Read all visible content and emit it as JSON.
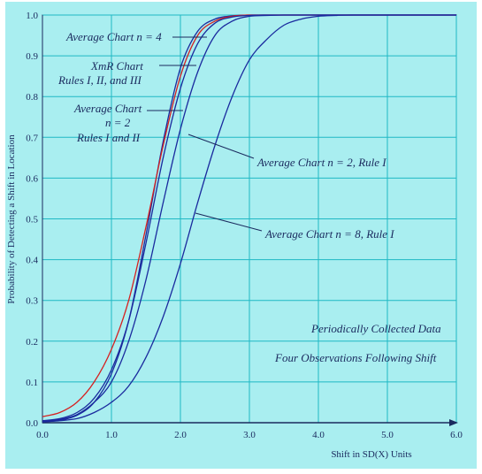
{
  "chart_data": {
    "type": "line",
    "ylabel": "Probability of Detecting a Shift in Location",
    "xlabel": "Shift in  SD(X) Units",
    "xlim": [
      0,
      6
    ],
    "ylim": [
      0,
      1
    ],
    "x_ticks": [
      "0.0",
      "1.0",
      "2.0",
      "3.0",
      "4.0",
      "5.0",
      "6.0"
    ],
    "y_ticks": [
      "0.0",
      "0.1",
      "0.2",
      "0.3",
      "0.4",
      "0.5",
      "0.6",
      "0.7",
      "0.8",
      "0.9",
      "1.0"
    ],
    "grid": true,
    "series": [
      {
        "name": "Average Chart n = 4",
        "color": "#1a2a9e",
        "x": [
          0,
          0.25,
          0.5,
          0.75,
          1.0,
          1.25,
          1.5,
          1.75,
          2.0,
          2.25,
          2.5,
          2.75,
          3.0,
          3.25,
          3.5,
          4.0,
          6.0
        ],
        "y": [
          0.002,
          0.006,
          0.018,
          0.05,
          0.12,
          0.25,
          0.46,
          0.69,
          0.87,
          0.96,
          0.99,
          0.998,
          1.0,
          1.0,
          1.0,
          1.0,
          1.0
        ]
      },
      {
        "name": "XmR Chart Rules I, II, and III",
        "color": "#d62020",
        "x": [
          0,
          0.25,
          0.5,
          0.75,
          1.0,
          1.25,
          1.5,
          1.75,
          2.0,
          2.25,
          2.5,
          2.75,
          3.0,
          3.25,
          3.5,
          4.0,
          6.0
        ],
        "y": [
          0.015,
          0.025,
          0.05,
          0.1,
          0.18,
          0.3,
          0.48,
          0.68,
          0.85,
          0.95,
          0.985,
          0.997,
          1.0,
          1.0,
          1.0,
          1.0,
          1.0
        ]
      },
      {
        "name": "Average Chart n = 2 Rules I and II",
        "color": "#1a2a9e",
        "x": [
          0,
          0.25,
          0.5,
          0.75,
          1.0,
          1.25,
          1.5,
          1.75,
          2.0,
          2.25,
          2.5,
          2.75,
          3.0,
          3.25,
          3.5,
          4.0,
          6.0
        ],
        "y": [
          0.005,
          0.01,
          0.025,
          0.06,
          0.13,
          0.25,
          0.44,
          0.65,
          0.82,
          0.93,
          0.98,
          0.995,
          0.999,
          1.0,
          1.0,
          1.0,
          1.0
        ]
      },
      {
        "name": "Average Chart n = 2, Rule I",
        "color": "#1a2a9e",
        "x": [
          0,
          0.25,
          0.5,
          0.75,
          1.0,
          1.25,
          1.5,
          1.75,
          2.0,
          2.25,
          2.5,
          2.75,
          3.0,
          3.25,
          3.5,
          4.0,
          6.0
        ],
        "y": [
          0.003,
          0.008,
          0.02,
          0.05,
          0.1,
          0.2,
          0.35,
          0.54,
          0.72,
          0.86,
          0.95,
          0.985,
          0.997,
          0.999,
          1.0,
          1.0,
          1.0
        ]
      },
      {
        "name": "Average Chart n = 8, Rule I",
        "color": "#1a2a9e",
        "x": [
          0,
          0.25,
          0.5,
          0.75,
          1.0,
          1.25,
          1.5,
          1.75,
          2.0,
          2.25,
          2.5,
          2.75,
          3.0,
          3.25,
          3.5,
          3.75,
          4.0,
          4.25,
          4.5,
          6.0
        ],
        "y": [
          0.002,
          0.005,
          0.01,
          0.025,
          0.05,
          0.09,
          0.16,
          0.26,
          0.39,
          0.54,
          0.68,
          0.8,
          0.89,
          0.94,
          0.975,
          0.99,
          0.997,
          0.999,
          1.0,
          1.0
        ]
      }
    ],
    "annotations": {
      "a1": "Average Chart n = 4",
      "a2_line1": "XmR Chart",
      "a2_line2": "Rules I, II, and III",
      "a3_line1": "Average Chart",
      "a3_line2": "n = 2",
      "a3_line3": "Rules I and II",
      "a4": "Average Chart n = 2, Rule I",
      "a5": "Average Chart n = 8, Rule I",
      "note1": "Periodically Collected Data",
      "note2": "Four Observations Following Shift"
    }
  }
}
